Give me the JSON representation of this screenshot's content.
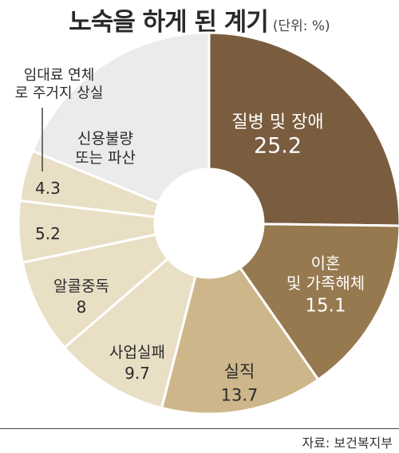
{
  "chart_data": {
    "type": "pie",
    "variant": "donut",
    "title": "노숙을 하게 된 계기",
    "unit": "(단위: %)",
    "source": "자료: 보건복지부",
    "slices": [
      {
        "label": "질병 및 장애",
        "value": 25.2,
        "value_text": "25.2",
        "color": "#7a5c3e",
        "text_color": "#ffffff"
      },
      {
        "label": "이혼 및 가족해체",
        "value": 15.1,
        "value_text": "15.1",
        "color": "#97794f",
        "text_color": "#ffffff"
      },
      {
        "label": "실직",
        "value": 13.7,
        "value_text": "13.7",
        "color": "#cdb68a",
        "text_color": "#2a2a2a"
      },
      {
        "label": "사업실패",
        "value": 9.7,
        "value_text": "9.7",
        "color": "#e9dfc5",
        "text_color": "#2a2a2a"
      },
      {
        "label": "알콜중독",
        "value": 8,
        "value_text": "8",
        "color": "#e9dfc5",
        "text_color": "#2a2a2a"
      },
      {
        "label": "신용불량 또는 파산",
        "value": 5.2,
        "value_text": "5.2",
        "color": "#e9dfc5",
        "text_color": "#2a2a2a"
      },
      {
        "label": "임대료 연체로 주거지 상실",
        "value": 4.3,
        "value_text": "4.3",
        "color": "#e9dfc5",
        "text_color": "#2a2a2a"
      },
      {
        "label": "",
        "value": 18.8,
        "value_text": "",
        "color": "#ebebeb",
        "text_color": "#2a2a2a"
      }
    ]
  }
}
